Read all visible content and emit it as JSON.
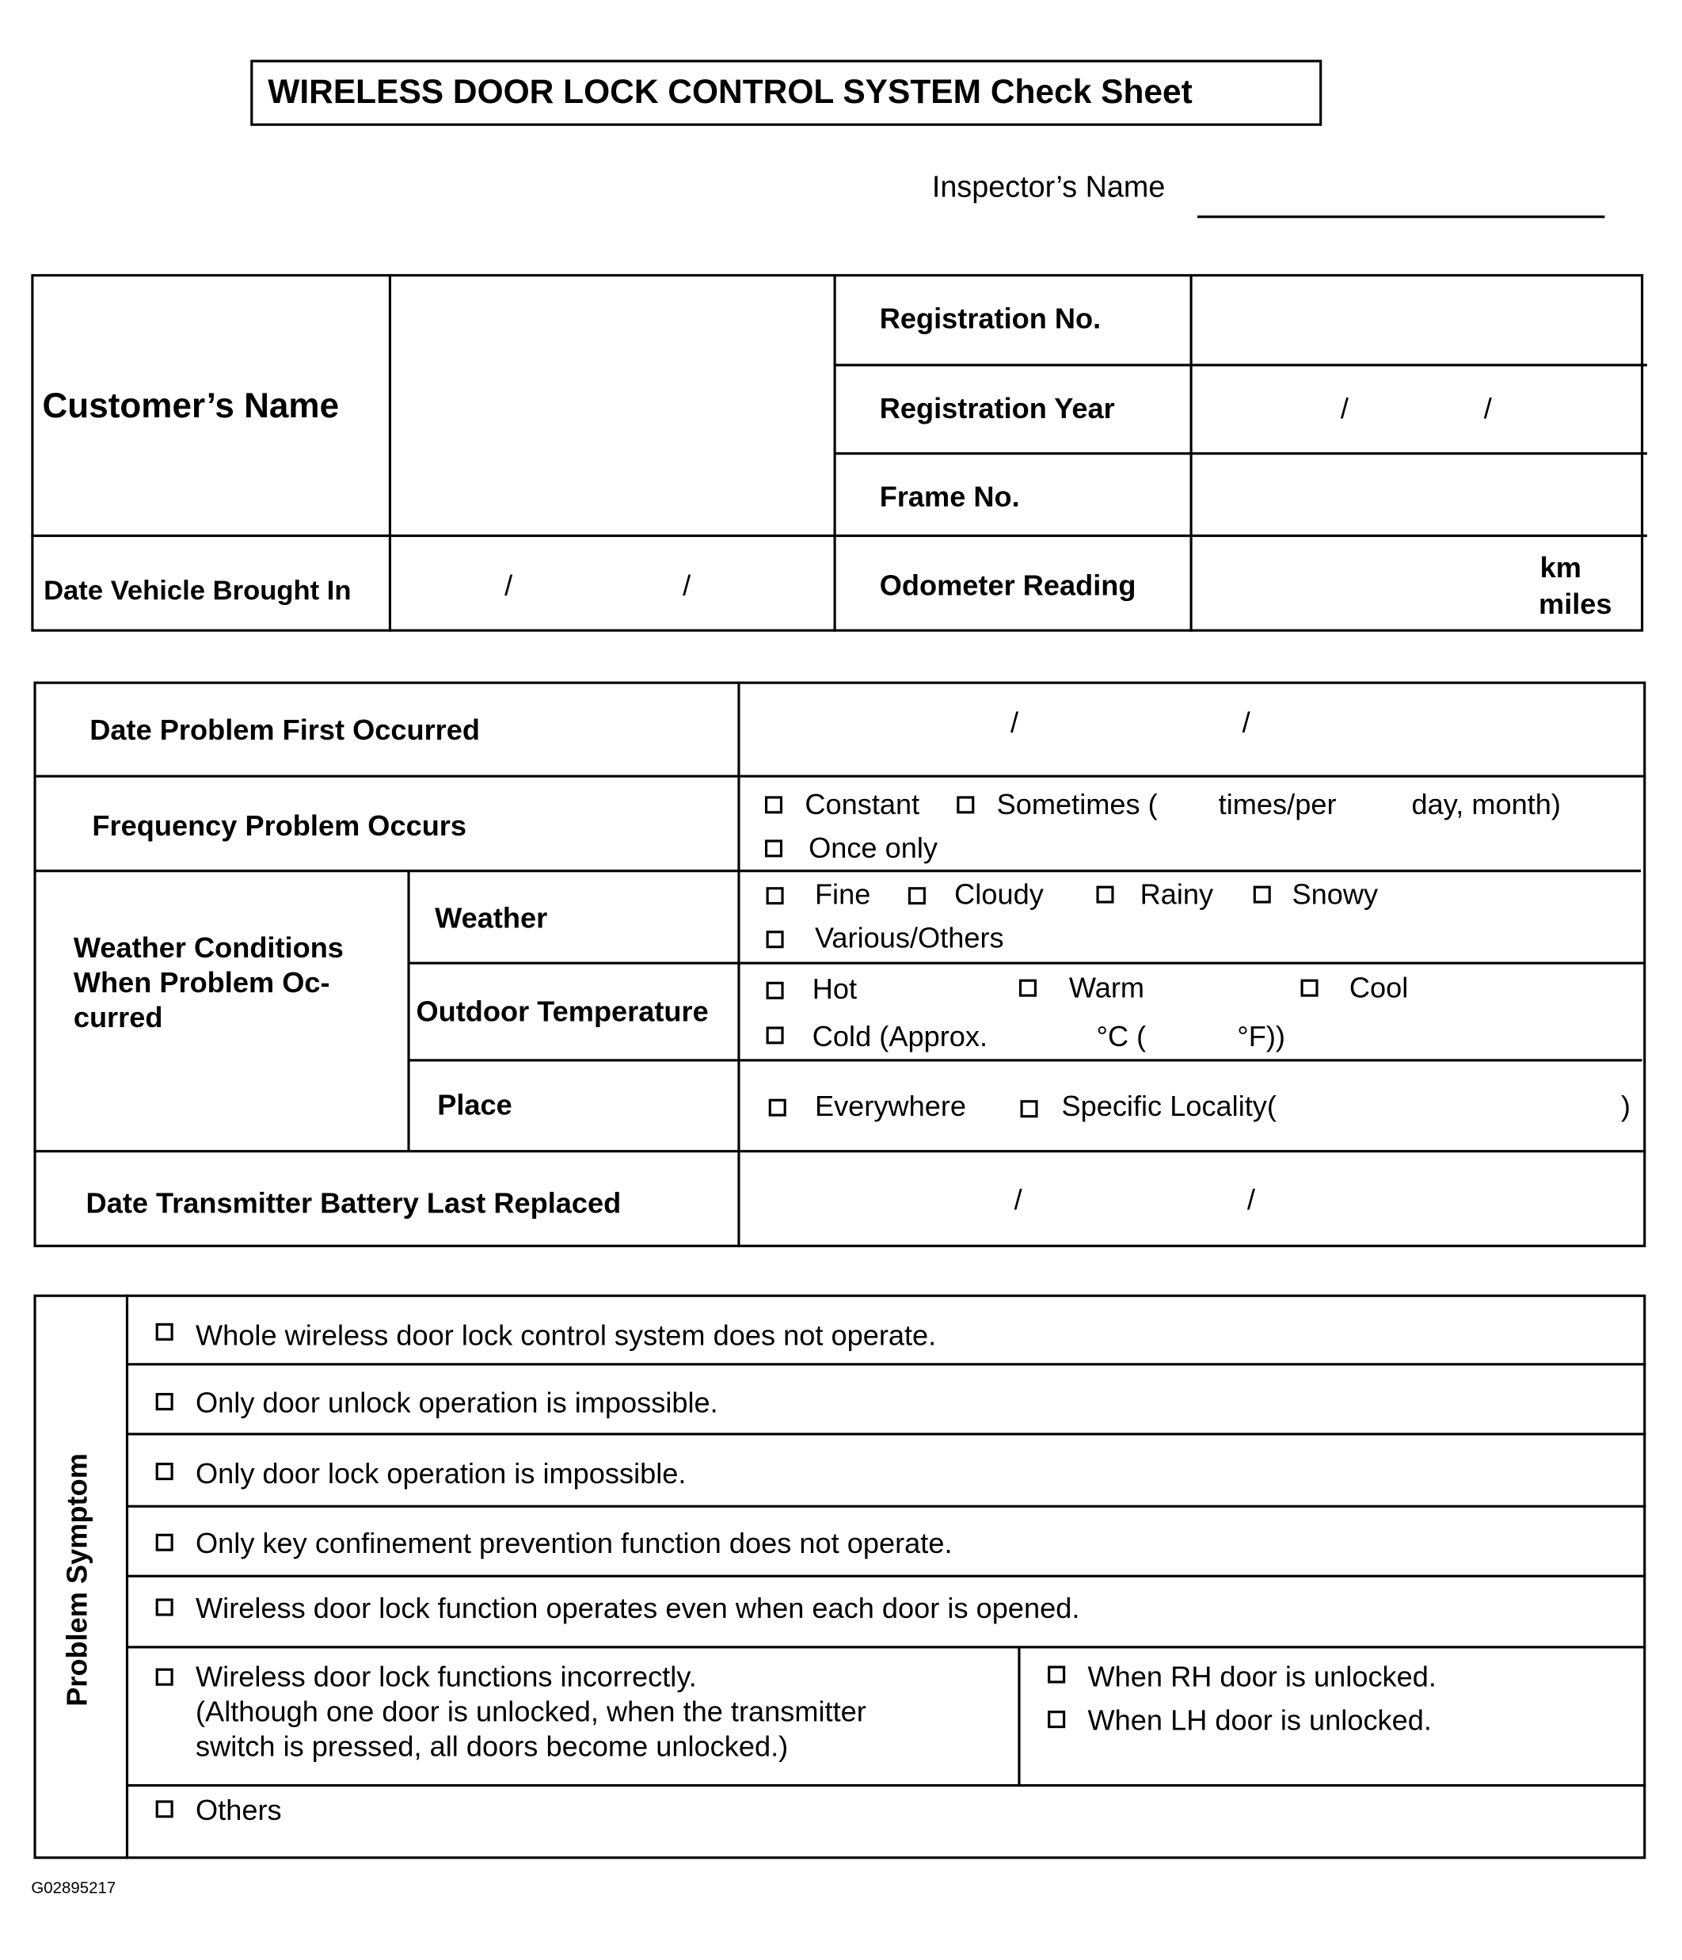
{
  "title": "WIRELESS DOOR LOCK CONTROL SYSTEM Check Sheet",
  "inspector_label": "Inspector’s Name",
  "vehicle": {
    "customer_name": "Customer’s Name",
    "registration_no": "Registration No.",
    "registration_year": "Registration Year",
    "frame_no": "Frame No.",
    "date_brought_in": "Date Vehicle Brought In",
    "odometer": "Odometer Reading",
    "km": "km",
    "miles": "miles",
    "slash": "/"
  },
  "conditions": {
    "date_first": "Date Problem First Occurred",
    "frequency": "Frequency Problem Occurs",
    "freq_options": {
      "constant": "Constant",
      "sometimes": "Sometimes (",
      "times_per": "times/per",
      "day_month": "day, month)",
      "once": "Once only"
    },
    "weather_group": [
      "Weather Conditions",
      "When Problem Oc-",
      "curred"
    ],
    "weather": "Weather",
    "weather_options": [
      "Fine",
      "Cloudy",
      "Rainy",
      "Snowy",
      "Various/Others"
    ],
    "temperature": "Outdoor Temperature",
    "temp_options": {
      "hot": "Hot",
      "warm": "Warm",
      "cool": "Cool",
      "cold": "Cold (Approx.",
      "deg_c": "°C (",
      "deg_f": "°F))"
    },
    "place": "Place",
    "place_options": {
      "everywhere": "Everywhere",
      "specific": "Specific Locality(",
      "close": ")"
    },
    "battery": "Date Transmitter Battery Last Replaced"
  },
  "symptom": {
    "label": "Problem Symptom",
    "items": [
      "Whole wireless door lock control system does not operate.",
      "Only door unlock operation is impossible.",
      "Only door lock operation is impossible.",
      "Only key confinement prevention function does not operate.",
      "Wireless door lock function operates even when each door is opened."
    ],
    "incorrect": [
      "Wireless door lock functions incorrectly.",
      "(Although one door is unlocked, when the transmitter",
      "switch is pressed, all doors become unlocked.)"
    ],
    "rh": "When RH door is unlocked.",
    "lh": "When LH door is unlocked.",
    "others": "Others"
  },
  "figure_id": "G02895217"
}
